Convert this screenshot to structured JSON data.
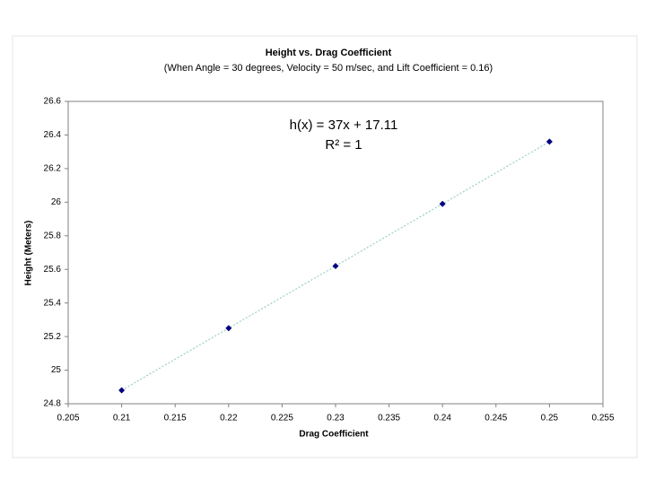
{
  "chart_data": {
    "type": "scatter",
    "title": "Height vs. Drag Coefficient",
    "subtitle": "(When Angle = 30 degrees, Velocity = 50 m/sec, and Lift Coefficient = 0.16)",
    "x_label": "Drag Coefficient",
    "y_label": "Height (Meters)",
    "annotations": [
      "h(x) = 37x + 17.11",
      "R² = 1"
    ],
    "series": [
      {
        "name": "Height",
        "color": "#000080",
        "x": [
          0.21,
          0.22,
          0.23,
          0.24,
          0.25
        ],
        "values": [
          24.88,
          25.25,
          25.62,
          25.99,
          26.36
        ]
      }
    ],
    "trendline": true,
    "trendline_color": "#9ccfc0",
    "xlim": [
      0.205,
      0.255
    ],
    "xticks": [
      0.205,
      0.21,
      0.215,
      0.22,
      0.225,
      0.23,
      0.235,
      0.24,
      0.245,
      0.25,
      0.255
    ],
    "ylim": [
      24.8,
      26.6
    ],
    "yticks": [
      24.8,
      25,
      25.2,
      25.4,
      25.6,
      25.8,
      26,
      26.2,
      26.4,
      26.6
    ]
  }
}
